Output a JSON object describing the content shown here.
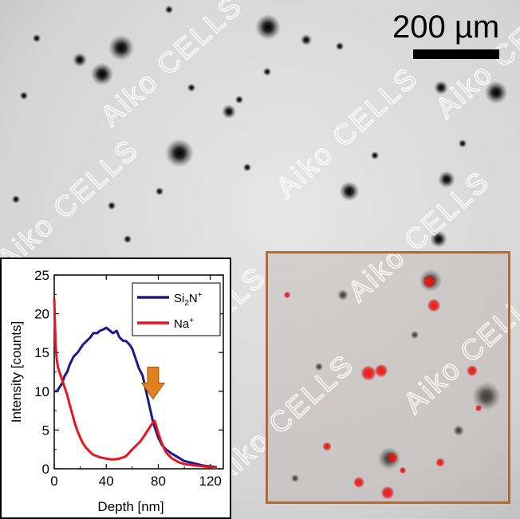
{
  "scale_bar": {
    "label": "200 µm"
  },
  "watermark": {
    "text": "Aiko CELLS"
  },
  "colors": {
    "si2n": "#1a1a8c",
    "na": "#e8161c",
    "arrow": "#e0801e",
    "box": "#c8651b"
  },
  "chart_data": {
    "type": "line",
    "xlabel": "Depth [nm]",
    "ylabel": "Intensity [counts]",
    "xlim": [
      0,
      130
    ],
    "ylim": [
      0,
      25
    ],
    "xticks": [
      0,
      40,
      80,
      120
    ],
    "yticks": [
      0,
      5,
      10,
      15,
      20,
      25
    ],
    "legend_position": "top-right",
    "annotation": {
      "type": "arrow-down",
      "x": 76,
      "y": 9
    },
    "series": [
      {
        "name": "Si2N+",
        "legend_main": "Si",
        "legend_sub": "2",
        "legend_rest": "N",
        "legend_sup": "+",
        "color": "#1a1a8c",
        "x": [
          0,
          2,
          4,
          6,
          8,
          10,
          12,
          15,
          18,
          20,
          22,
          25,
          28,
          30,
          33,
          35,
          38,
          40,
          43,
          45,
          48,
          50,
          53,
          55,
          58,
          60,
          62,
          65,
          68,
          70,
          72,
          74,
          76,
          78,
          80,
          83,
          86,
          90,
          95,
          100,
          105,
          110,
          115,
          120,
          125
        ],
        "y": [
          10,
          10,
          10.5,
          11,
          12,
          12.5,
          13.5,
          14.5,
          15,
          15.5,
          16,
          16.5,
          17,
          17.5,
          17.5,
          17.8,
          18,
          18.2,
          17.8,
          17.5,
          17.8,
          17,
          16.5,
          16.5,
          16,
          15.5,
          14.5,
          13,
          12,
          10.5,
          9,
          7.5,
          6,
          5,
          4,
          3,
          2.5,
          2,
          1.5,
          1,
          0.8,
          0.6,
          0.4,
          0.3,
          0.2
        ]
      },
      {
        "name": "Na+",
        "legend_main": "Na",
        "legend_sub": "",
        "legend_rest": "",
        "legend_sup": "+",
        "color": "#e8161c",
        "x": [
          0,
          1,
          2,
          3,
          4,
          5,
          6,
          7,
          8,
          10,
          12,
          14,
          16,
          18,
          20,
          22,
          25,
          28,
          30,
          35,
          40,
          45,
          50,
          55,
          60,
          63,
          66,
          69,
          72,
          74,
          76,
          77,
          78,
          79,
          80,
          82,
          84,
          86,
          90,
          95,
          100,
          105,
          110,
          115,
          120,
          125
        ],
        "y": [
          22,
          16,
          14,
          13,
          12.5,
          12,
          11.5,
          11,
          10.5,
          9.5,
          8.2,
          7,
          5.8,
          4.8,
          4,
          3.3,
          2.6,
          2.1,
          1.8,
          1.5,
          1.3,
          1.2,
          1.3,
          1.6,
          2.5,
          3,
          3.5,
          4.2,
          5,
          5.5,
          6,
          6.2,
          5.8,
          5.2,
          4.6,
          3.6,
          2.8,
          2.1,
          1.4,
          0.9,
          0.6,
          0.5,
          0.4,
          0.3,
          0.2,
          0.1
        ]
      }
    ]
  }
}
